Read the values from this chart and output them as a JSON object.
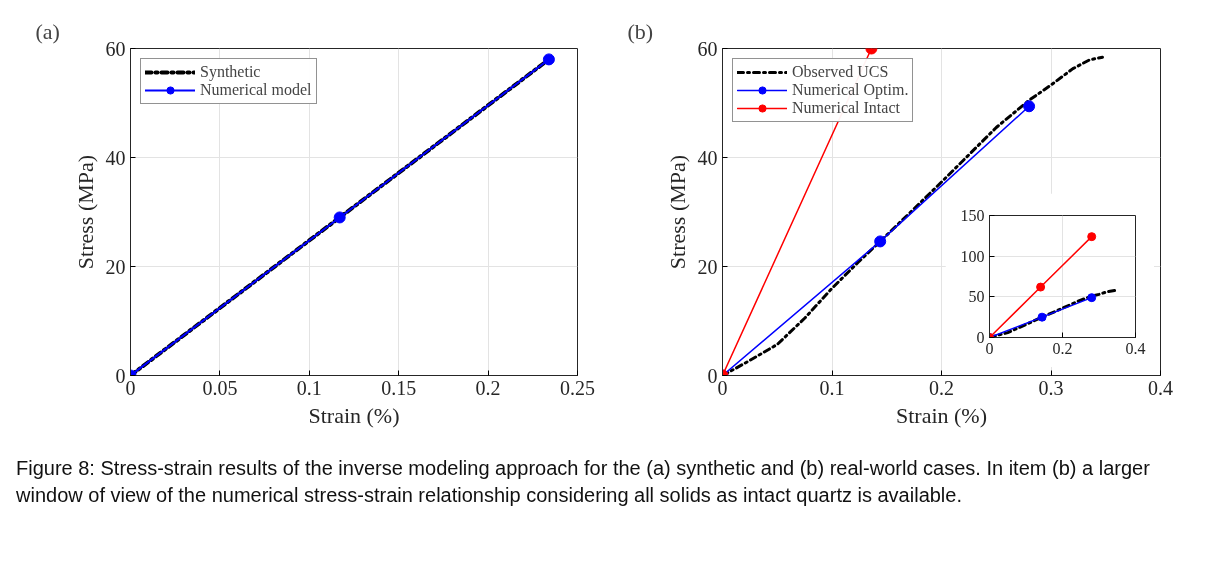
{
  "chart_data": [
    {
      "type": "line",
      "title": "(a)",
      "xlabel": "Strain (%)",
      "ylabel": "Stress (MPa)",
      "xlim": [
        0,
        0.25
      ],
      "xticks": [
        0,
        0.05,
        0.1,
        0.15,
        0.2,
        0.25
      ],
      "ylim": [
        0,
        60
      ],
      "yticks": [
        0,
        20,
        40,
        60
      ],
      "grid": true,
      "legend": "top left",
      "series": [
        {
          "name": "Synthetic",
          "color": "#000000",
          "line_style": "dashdot",
          "marker": "none",
          "x": [
            0,
            0.234
          ],
          "values": [
            0,
            58
          ]
        },
        {
          "name": "Numerical model",
          "color": "#0000ff",
          "line_style": "solid",
          "marker": "circle",
          "x": [
            0,
            0.117,
            0.234
          ],
          "values": [
            0,
            29,
            58
          ]
        }
      ],
      "annotations": [
        "Figure 8: Stress-strain results of the inverse modeling approach for the (a) synthetic and (b) real-world cases. In item (b) a larger window of view of the numerical stress-strain relationship considering all solids as intact quartz is available."
      ]
    },
    {
      "type": "line",
      "title": "(b)",
      "xlabel": "Strain (%)",
      "ylabel": "Stress (MPa)",
      "xlim": [
        0,
        0.4
      ],
      "xticks": [
        0,
        0.1,
        0.2,
        0.3,
        0.4
      ],
      "ylim": [
        0,
        60
      ],
      "yticks": [
        0,
        20,
        40,
        60
      ],
      "grid": true,
      "legend": "top left",
      "series": [
        {
          "name": "Observed UCS",
          "color": "#000000",
          "line_style": "dashdot",
          "marker": "none",
          "x": [
            0,
            0.02,
            0.05,
            0.075,
            0.1,
            0.125,
            0.144,
            0.175,
            0.2,
            0.225,
            0.25,
            0.28,
            0.3,
            0.32,
            0.335,
            0.347
          ],
          "values": [
            0,
            2.2,
            5.7,
            10.5,
            16,
            21,
            24.6,
            30.6,
            35.5,
            40.5,
            45.5,
            50.5,
            53.3,
            56.3,
            57.9,
            58.4
          ]
        },
        {
          "name": "Numerical Optim.",
          "color": "#0000ff",
          "line_style": "solid",
          "marker": "circle",
          "x": [
            0,
            0.144,
            0.28
          ],
          "values": [
            0,
            24.6,
            49.4
          ]
        },
        {
          "name": "Numerical Intact",
          "color": "#ff0000",
          "line_style": "solid",
          "marker": "circle",
          "x": [
            0,
            0.136
          ],
          "values": [
            0,
            60
          ]
        }
      ]
    },
    {
      "type": "line",
      "xlim": [
        0,
        0.4
      ],
      "xticks": [
        0,
        0.2,
        0.4
      ],
      "ylim": [
        0,
        150
      ],
      "yticks": [
        0,
        50,
        100,
        150
      ],
      "grid": true,
      "series": [
        {
          "color": "#000000",
          "line_style": "dashdot",
          "marker": "none",
          "x": [
            0,
            0.05,
            0.1,
            0.144,
            0.2,
            0.25,
            0.28,
            0.3,
            0.32,
            0.347
          ],
          "values": [
            0,
            6,
            16,
            25,
            36,
            46,
            51,
            53,
            56,
            58
          ]
        },
        {
          "color": "#0000ff",
          "line_style": "solid",
          "marker": "circle",
          "x": [
            0,
            0.144,
            0.28
          ],
          "values": [
            0,
            25,
            49
          ]
        },
        {
          "color": "#ff0000",
          "line_style": "solid",
          "marker": "circle",
          "x": [
            0,
            0.14,
            0.28
          ],
          "values": [
            0,
            62,
            124
          ]
        }
      ]
    }
  ]
}
